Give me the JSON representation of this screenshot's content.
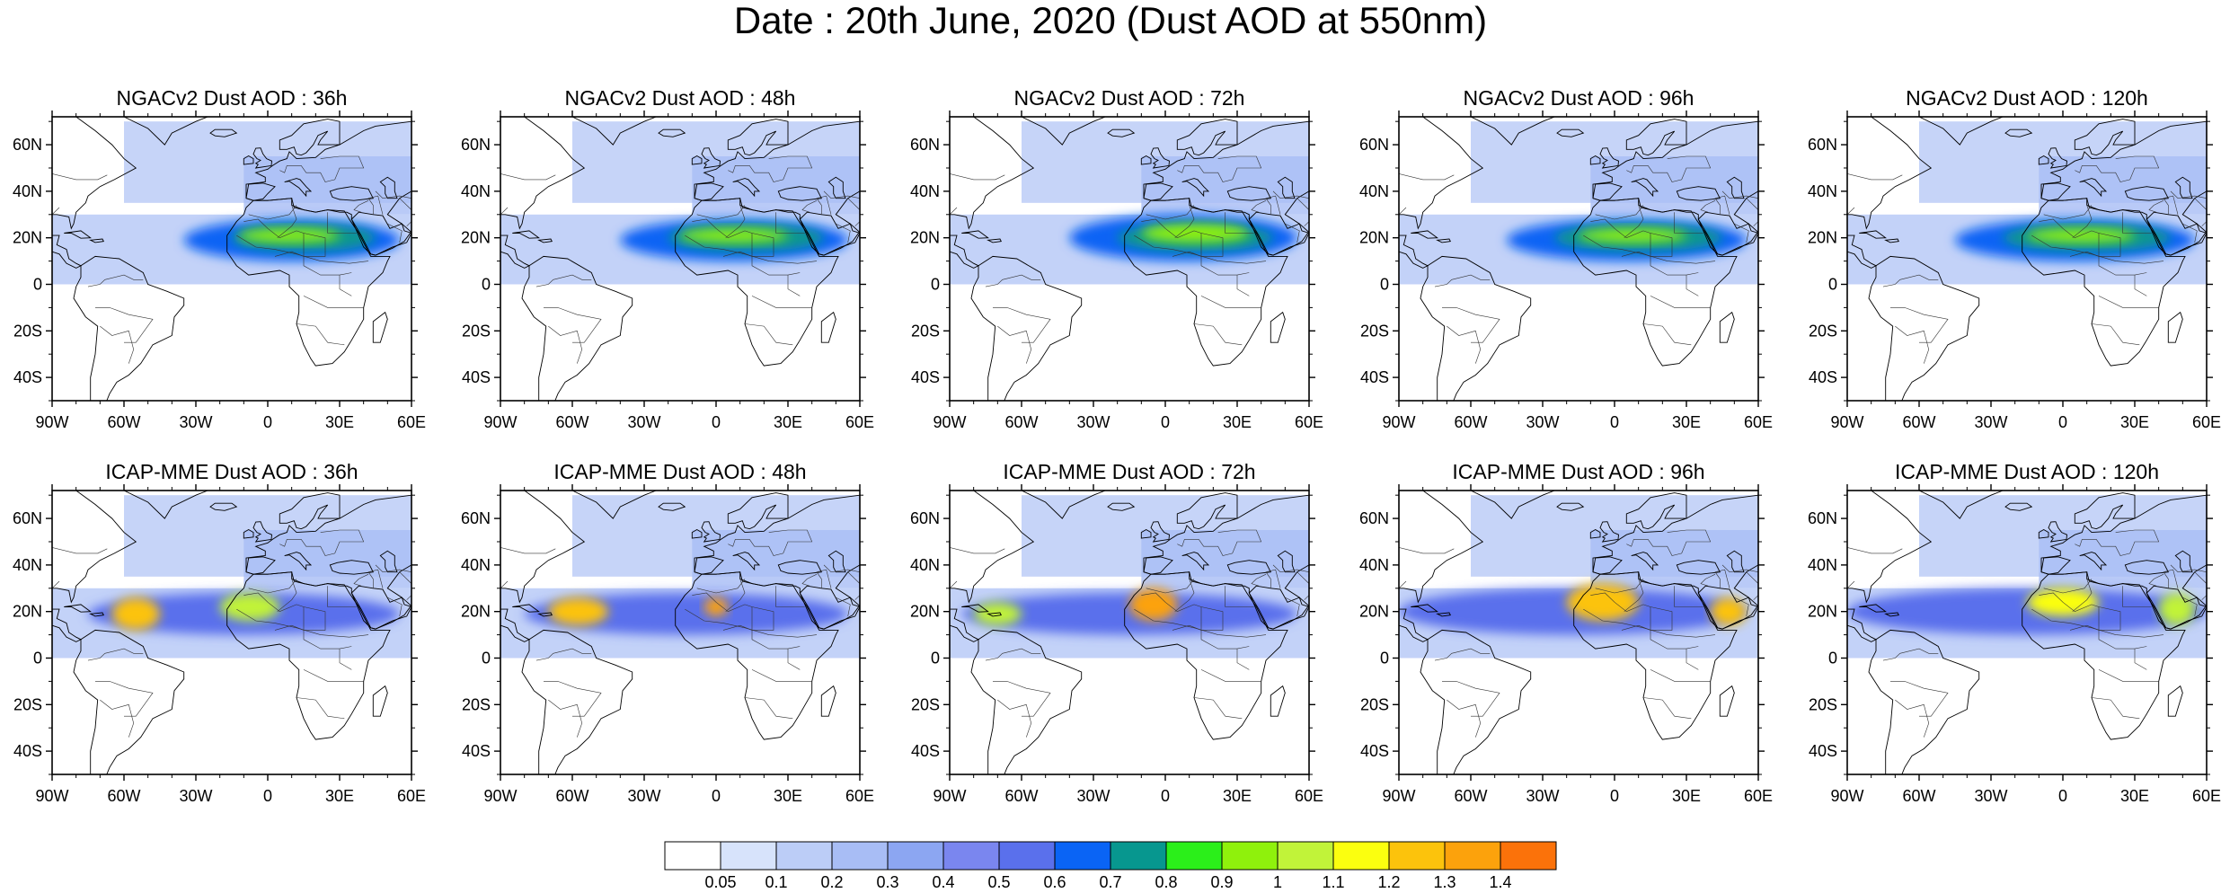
{
  "title": "Date : 20th June, 2020 (Dust AOD at 550nm)",
  "axes": {
    "lat_ticks": [
      {
        "v": 60,
        "label": "60N"
      },
      {
        "v": 40,
        "label": "40N"
      },
      {
        "v": 20,
        "label": "20N"
      },
      {
        "v": 0,
        "label": "0"
      },
      {
        "v": -20,
        "label": "20S"
      },
      {
        "v": -40,
        "label": "40S"
      }
    ],
    "lon_ticks": [
      {
        "v": -90,
        "label": "90W"
      },
      {
        "v": -60,
        "label": "60W"
      },
      {
        "v": -30,
        "label": "30W"
      },
      {
        "v": 0,
        "label": "0"
      },
      {
        "v": 30,
        "label": "30E"
      },
      {
        "v": 60,
        "label": "60E"
      }
    ],
    "lon_range": [
      -90,
      60
    ],
    "lat_range": [
      -50,
      72
    ]
  },
  "panels": [
    {
      "title": "NGACv2 Dust AOD : 36h",
      "model": "NGACv2",
      "lead": 36,
      "plumes": [
        {
          "lon": [
            -35,
            55
          ],
          "lat": [
            10,
            28
          ],
          "level": 0.5
        },
        {
          "lon": [
            -15,
            45
          ],
          "lat": [
            14,
            26
          ],
          "level": 0.6
        },
        {
          "lon": [
            -12,
            30
          ],
          "lat": [
            18,
            24
          ],
          "level": 0.8
        }
      ]
    },
    {
      "title": "NGACv2 Dust AOD : 48h",
      "model": "NGACv2",
      "lead": 48,
      "plumes": [
        {
          "lon": [
            -40,
            55
          ],
          "lat": [
            10,
            28
          ],
          "level": 0.5
        },
        {
          "lon": [
            -20,
            45
          ],
          "lat": [
            14,
            26
          ],
          "level": 0.6
        },
        {
          "lon": [
            -15,
            30
          ],
          "lat": [
            18,
            24
          ],
          "level": 0.8
        }
      ]
    },
    {
      "title": "NGACv2 Dust AOD : 72h",
      "model": "NGACv2",
      "lead": 72,
      "plumes": [
        {
          "lon": [
            -40,
            55
          ],
          "lat": [
            10,
            30
          ],
          "level": 0.5
        },
        {
          "lon": [
            -20,
            45
          ],
          "lat": [
            14,
            26
          ],
          "level": 0.6
        },
        {
          "lon": [
            -10,
            35
          ],
          "lat": [
            18,
            26
          ],
          "level": 0.8
        }
      ]
    },
    {
      "title": "NGACv2 Dust AOD : 96h",
      "model": "NGACv2",
      "lead": 96,
      "plumes": [
        {
          "lon": [
            -45,
            55
          ],
          "lat": [
            10,
            28
          ],
          "level": 0.5
        },
        {
          "lon": [
            -25,
            45
          ],
          "lat": [
            14,
            26
          ],
          "level": 0.6
        },
        {
          "lon": [
            -15,
            30
          ],
          "lat": [
            18,
            24
          ],
          "level": 0.8
        }
      ]
    },
    {
      "title": "NGACv2 Dust AOD : 120h",
      "model": "NGACv2",
      "lead": 120,
      "plumes": [
        {
          "lon": [
            -45,
            55
          ],
          "lat": [
            10,
            28
          ],
          "level": 0.5
        },
        {
          "lon": [
            -25,
            45
          ],
          "lat": [
            14,
            26
          ],
          "level": 0.6
        },
        {
          "lon": [
            -15,
            30
          ],
          "lat": [
            18,
            24
          ],
          "level": 0.8
        }
      ]
    },
    {
      "title": "ICAP-MME Dust AOD : 36h",
      "model": "ICAP-MME",
      "lead": 36,
      "plumes": [
        {
          "lon": [
            -75,
            55
          ],
          "lat": [
            10,
            28
          ],
          "level": 0.4
        },
        {
          "lon": [
            -65,
            -45
          ],
          "lat": [
            12,
            26
          ],
          "level": 1.1
        },
        {
          "lon": [
            -20,
            5
          ],
          "lat": [
            16,
            28
          ],
          "level": 0.9
        }
      ]
    },
    {
      "title": "ICAP-MME Dust AOD : 48h",
      "model": "ICAP-MME",
      "lead": 48,
      "plumes": [
        {
          "lon": [
            -80,
            55
          ],
          "lat": [
            10,
            28
          ],
          "level": 0.4
        },
        {
          "lon": [
            -70,
            -45
          ],
          "lat": [
            14,
            26
          ],
          "level": 1.1
        },
        {
          "lon": [
            -5,
            5
          ],
          "lat": [
            18,
            26
          ],
          "level": 1.2
        }
      ]
    },
    {
      "title": "ICAP-MME Dust AOD : 72h",
      "model": "ICAP-MME",
      "lead": 72,
      "plumes": [
        {
          "lon": [
            -85,
            55
          ],
          "lat": [
            10,
            28
          ],
          "level": 0.4
        },
        {
          "lon": [
            -80,
            -60
          ],
          "lat": [
            14,
            24
          ],
          "level": 0.9
        },
        {
          "lon": [
            -15,
            5
          ],
          "lat": [
            16,
            30
          ],
          "level": 1.2
        }
      ]
    },
    {
      "title": "ICAP-MME Dust AOD : 96h",
      "model": "ICAP-MME",
      "lead": 96,
      "plumes": [
        {
          "lon": [
            -90,
            55
          ],
          "lat": [
            10,
            30
          ],
          "level": 0.4
        },
        {
          "lon": [
            -20,
            10
          ],
          "lat": [
            16,
            32
          ],
          "level": 1.1
        },
        {
          "lon": [
            40,
            55
          ],
          "lat": [
            14,
            26
          ],
          "level": 1.1
        }
      ]
    },
    {
      "title": "ICAP-MME Dust AOD : 120h",
      "model": "ICAP-MME",
      "lead": 120,
      "plumes": [
        {
          "lon": [
            -90,
            60
          ],
          "lat": [
            10,
            30
          ],
          "level": 0.4
        },
        {
          "lon": [
            -15,
            15
          ],
          "lat": [
            18,
            30
          ],
          "level": 1.0
        },
        {
          "lon": [
            40,
            55
          ],
          "lat": [
            14,
            28
          ],
          "level": 0.9
        }
      ]
    }
  ],
  "colorbar": {
    "labels": [
      "0.05",
      "0.1",
      "0.2",
      "0.3",
      "0.4",
      "0.5",
      "0.6",
      "0.7",
      "0.8",
      "0.9",
      "1",
      "1.1",
      "1.2",
      "1.3",
      "1.4"
    ],
    "colors": [
      "#ffffff",
      "#d7e3fb",
      "#bccdf7",
      "#a8bdf5",
      "#8ca6f2",
      "#7a86ef",
      "#5a70ec",
      "#0a64f5",
      "#07978f",
      "#2bef1a",
      "#8ff10c",
      "#c1f339",
      "#fbff0f",
      "#fcc30c",
      "#fca20c",
      "#fb720a",
      "#f92c14"
    ]
  }
}
